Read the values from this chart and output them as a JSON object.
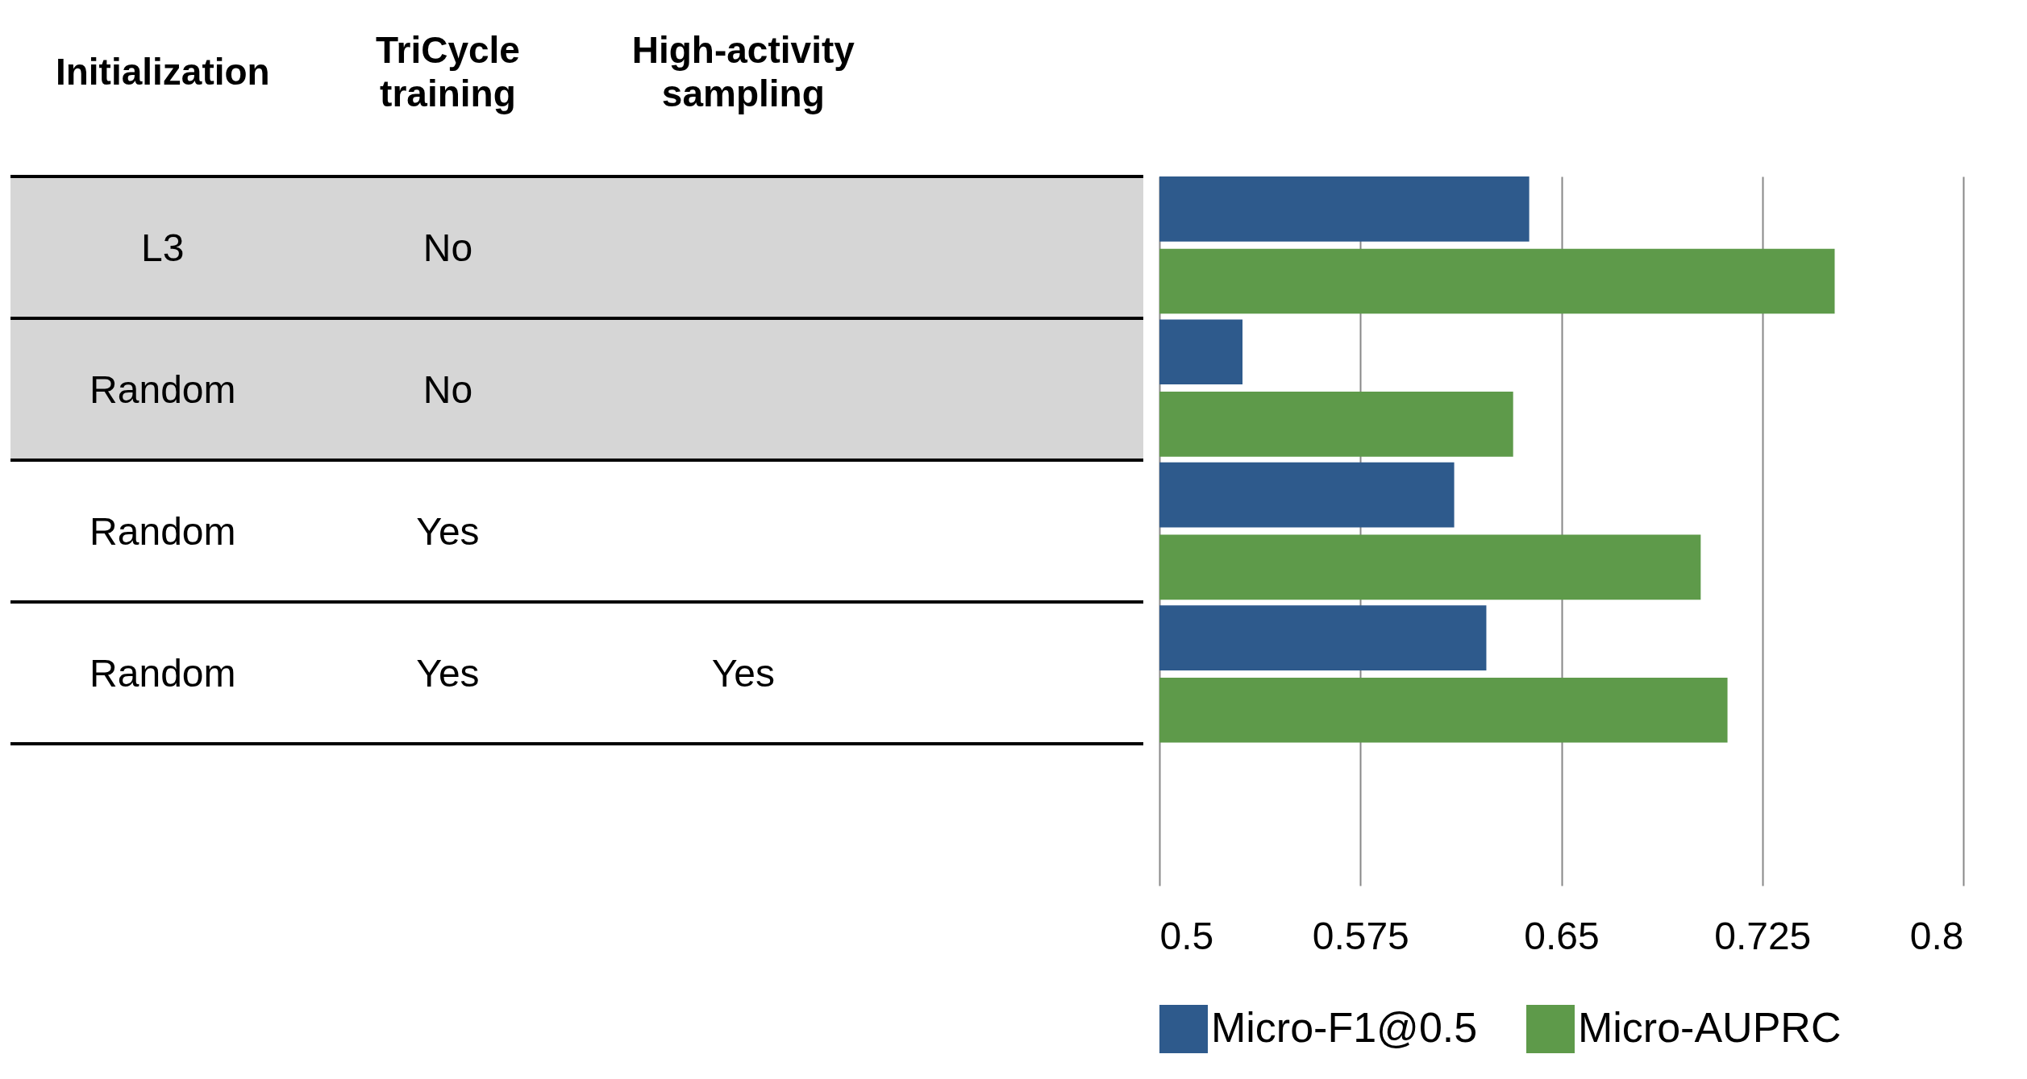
{
  "chart_data": {
    "type": "bar",
    "orientation": "horizontal",
    "categories": [
      null,
      null,
      null,
      null,
      null
    ],
    "series": [
      {
        "name": "Micro-F1@0.5",
        "color": "#2e5a8c",
        "values": [
          0.638,
          0.531,
          0.61,
          0.622,
          null
        ]
      },
      {
        "name": "Micro-AUPRC",
        "color": "#5e9a4a",
        "values": [
          0.752,
          0.632,
          0.702,
          0.712,
          null
        ]
      }
    ],
    "xlim": [
      0.5,
      0.8
    ],
    "xticks": [
      0.5,
      0.575,
      0.65,
      0.725,
      0.8
    ],
    "grid": "x",
    "legend": "bottom",
    "annotations": [
      "Initialization",
      "TriCycle training",
      "High-activity sampling",
      "L3",
      "No",
      "Random",
      "No",
      "Random",
      "Yes",
      "Random",
      "Yes",
      "Yes"
    ]
  }
}
